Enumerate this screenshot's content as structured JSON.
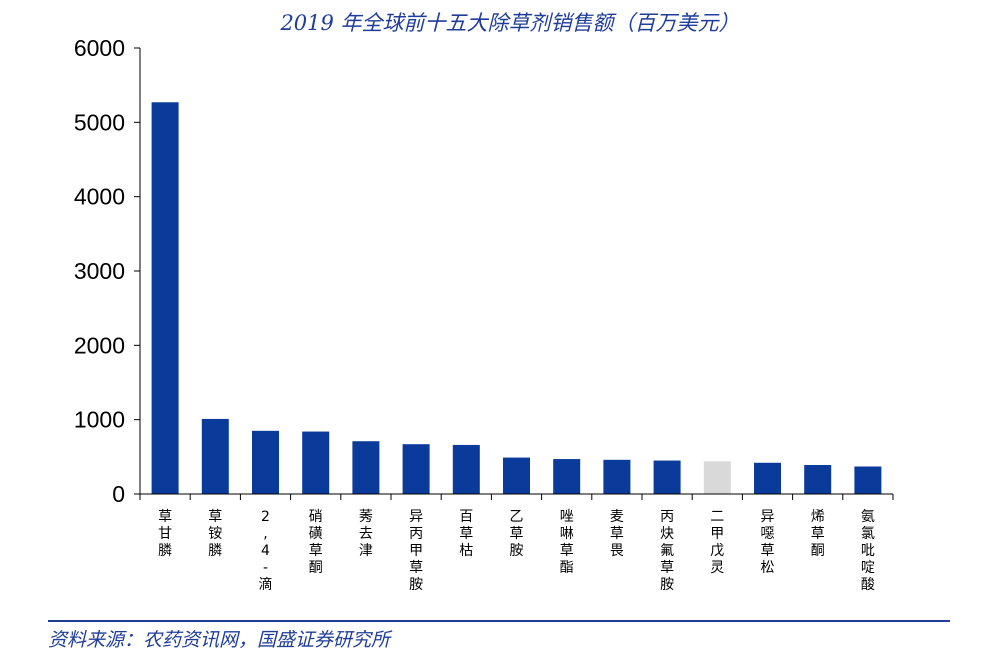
{
  "chart_data": {
    "type": "bar",
    "title": "2019 年全球前十五大除草剂销售额（百万美元）",
    "categories": [
      "草甘膦",
      "草铵膦",
      "2,4-滴",
      "硝磺草酮",
      "莠去津",
      "异丙甲草胺",
      "百草枯",
      "乙草胺",
      "唑啉草酯",
      "麦草畏",
      "丙炔氟草胺",
      "二甲戊灵",
      "异噁草松",
      "烯草酮",
      "氨氯吡啶酸"
    ],
    "values": [
      5270,
      1010,
      850,
      840,
      710,
      670,
      660,
      490,
      470,
      460,
      450,
      440,
      420,
      390,
      370
    ],
    "yticks": [
      0,
      1000,
      2000,
      3000,
      4000,
      5000,
      6000
    ],
    "ylim": [
      0,
      6000
    ],
    "xlabel": "",
    "ylabel": "",
    "grid": false,
    "legend": "none",
    "colors": {
      "bar": "#0A3A9A",
      "highlight_bar": "#D9D9D9",
      "axis": "#000000",
      "title": "#1F3D99"
    },
    "highlight_index": 11
  },
  "source": {
    "text": "资料来源：农药资讯网，国盛证券研究所",
    "rule_color": "#1F3D99"
  }
}
